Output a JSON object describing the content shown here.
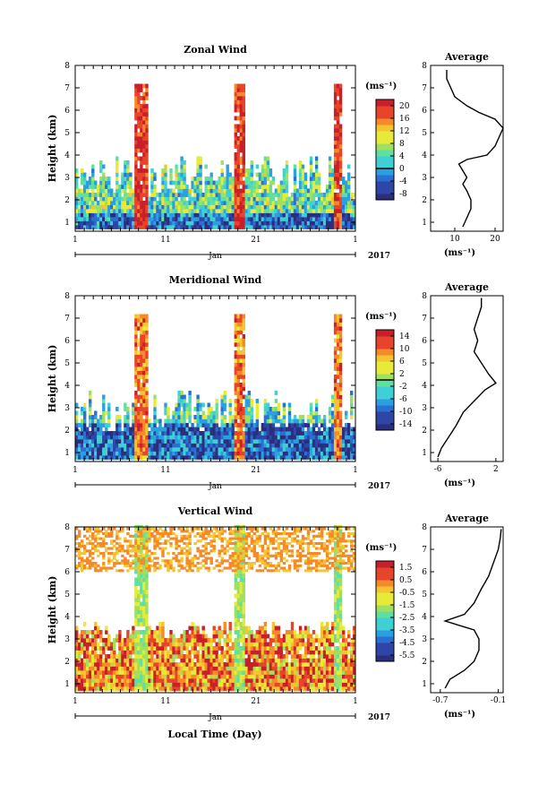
{
  "figure": {
    "xlabel": "Local Time (Day)",
    "unit_label": "(ms⁻¹)",
    "height_label": "Height (km)",
    "average_title": "Average",
    "month_label": "Jan",
    "year_label": "2017",
    "x_ticks": [
      "1",
      "11",
      "21",
      "1"
    ],
    "height_ticks": [
      "1",
      "2",
      "3",
      "4",
      "5",
      "6",
      "7",
      "8"
    ]
  },
  "chart_data": [
    {
      "type": "heatmap",
      "title": "Zonal Wind",
      "ylabel": "Height (km)",
      "xlabel": "",
      "xlim_days": [
        1,
        32
      ],
      "ylim": [
        0.6,
        8.0
      ],
      "colorbar": {
        "label": "(ms⁻¹)",
        "ticks": [
          -8,
          -4,
          0,
          4,
          8,
          12,
          16,
          20
        ],
        "range": [
          -10,
          22
        ]
      },
      "average_profile": {
        "title": "Average",
        "xlabel": "(ms⁻¹)",
        "xticks": [
          10,
          20
        ],
        "xlim": [
          4,
          22
        ],
        "points": [
          [
            12,
            0.8
          ],
          [
            13,
            1.2
          ],
          [
            14,
            1.6
          ],
          [
            14,
            2.0
          ],
          [
            13,
            2.4
          ],
          [
            12,
            2.7
          ],
          [
            13,
            3.0
          ],
          [
            12,
            3.3
          ],
          [
            11,
            3.6
          ],
          [
            13,
            3.8
          ],
          [
            18,
            4.0
          ],
          [
            20,
            4.4
          ],
          [
            21,
            4.8
          ],
          [
            22,
            5.2
          ],
          [
            20,
            5.6
          ],
          [
            16,
            5.9
          ],
          [
            13,
            6.2
          ],
          [
            10,
            6.6
          ],
          [
            9,
            7.0
          ],
          [
            8,
            7.4
          ],
          [
            8,
            7.8
          ]
        ]
      }
    },
    {
      "type": "heatmap",
      "title": "Meridional Wind",
      "ylabel": "Height (km)",
      "xlabel": "",
      "xlim_days": [
        1,
        32
      ],
      "ylim": [
        0.6,
        8.0
      ],
      "colorbar": {
        "label": "(ms⁻¹)",
        "ticks": [
          -14,
          -10,
          -6,
          -2,
          2,
          6,
          10,
          14
        ],
        "range": [
          -16,
          16
        ]
      },
      "average_profile": {
        "title": "Average",
        "xlabel": "(ms⁻¹)",
        "xticks": [
          -6,
          2
        ],
        "xlim": [
          -7,
          3
        ],
        "points": [
          [
            -6,
            0.8
          ],
          [
            -5.5,
            1.2
          ],
          [
            -4.5,
            1.7
          ],
          [
            -3.5,
            2.2
          ],
          [
            -2.5,
            2.8
          ],
          [
            -1,
            3.3
          ],
          [
            0.5,
            3.8
          ],
          [
            2,
            4.1
          ],
          [
            1,
            4.5
          ],
          [
            0,
            5.0
          ],
          [
            -1,
            5.5
          ],
          [
            -0.5,
            6.0
          ],
          [
            -1,
            6.5
          ],
          [
            -0.5,
            7.0
          ],
          [
            0,
            7.5
          ],
          [
            0,
            7.9
          ]
        ]
      }
    },
    {
      "type": "heatmap",
      "title": "Vertical Wind",
      "ylabel": "Height (km)",
      "xlabel": "Local Time (Day)",
      "xlim_days": [
        1,
        32
      ],
      "ylim": [
        0.6,
        8.0
      ],
      "colorbar": {
        "label": "(ms⁻¹)",
        "ticks": [
          -5.5,
          -4.5,
          -3.5,
          -2.5,
          -1.5,
          -0.5,
          0.5,
          1.5
        ],
        "range": [
          -6.0,
          2.0
        ]
      },
      "average_profile": {
        "title": "Average",
        "xlabel": "(ms⁻¹)",
        "xticks": [
          -0.7,
          -0.1
        ],
        "xlim": [
          -0.8,
          -0.05
        ],
        "points": [
          [
            -0.65,
            0.8
          ],
          [
            -0.6,
            1.2
          ],
          [
            -0.45,
            1.6
          ],
          [
            -0.35,
            2.0
          ],
          [
            -0.3,
            2.5
          ],
          [
            -0.3,
            3.0
          ],
          [
            -0.35,
            3.4
          ],
          [
            -0.65,
            3.8
          ],
          [
            -0.45,
            4.1
          ],
          [
            -0.35,
            4.6
          ],
          [
            -0.28,
            5.2
          ],
          [
            -0.2,
            5.8
          ],
          [
            -0.15,
            6.4
          ],
          [
            -0.1,
            7.0
          ],
          [
            -0.08,
            7.5
          ],
          [
            -0.07,
            7.9
          ]
        ]
      }
    }
  ]
}
